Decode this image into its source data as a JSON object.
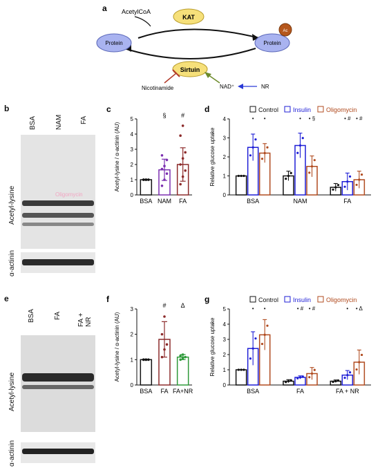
{
  "panel_a": {
    "letter": "a",
    "acetyl_coa": "AcetylCoA",
    "kat": "KAT",
    "protein_left": "Protein",
    "protein_right": "Protein",
    "ac": "Ac",
    "sirtuin": "Sirtuin",
    "nicotinamide": "Nicotinamide",
    "nad": "NAD⁺",
    "nr": "NR"
  },
  "panel_b": {
    "letter": "b",
    "lanes": [
      "BSA",
      "NAM",
      "FA"
    ],
    "blot_label_top": "Acetyl-lysine",
    "blot_label_bottom": "α-actinin",
    "overlay_text": "Oligomycin"
  },
  "panel_e": {
    "letter": "e",
    "lanes": [
      "BSA",
      "FA",
      "FA + NR"
    ],
    "blot_label_top": "Acetyl-lysine",
    "blot_label_bottom": "α-actinin"
  },
  "colors": {
    "control": "#111111",
    "insulin": "#1d1dd6",
    "oligomycin": "#b04a1e",
    "nam": "#7b2fb0",
    "fa": "#8c2a2a",
    "fa_nr": "#2e9a3a",
    "sirtuin_fill": "#f6e07a",
    "protein_fill": "#a9b3f0"
  },
  "chart_data": [
    {
      "panel": "c",
      "type": "bar",
      "ylabel": "Acetyl-lysine / α-actinin (AU)",
      "xlabel": "",
      "categories": [
        "BSA",
        "NAM",
        "FA"
      ],
      "values": [
        1.0,
        1.65,
        2.0
      ],
      "errors": [
        0,
        0.7,
        1.1
      ],
      "annotations": [
        "",
        "§",
        "#"
      ],
      "ylim": [
        0,
        5
      ],
      "yticks": [
        "0",
        "1",
        "2",
        "3",
        "4",
        "5"
      ],
      "points": [
        [
          1,
          1,
          1,
          1,
          1,
          1,
          1,
          1
        ],
        [
          0.6,
          1.0,
          1.4,
          1.7,
          1.9,
          2.3,
          2.6
        ],
        [
          0.7,
          1.2,
          1.6,
          2.0,
          2.4,
          2.8,
          3.9,
          4.55
        ]
      ]
    },
    {
      "panel": "d",
      "type": "bar",
      "ylabel": "Relative glucose uptake",
      "xlabel": "",
      "legend": [
        "Control",
        "Insulin",
        "Oligomycin"
      ],
      "legend_position": "top",
      "categories": [
        "BSA",
        "NAM",
        "FA"
      ],
      "series": [
        {
          "name": "Control",
          "values": [
            1.0,
            1.0,
            0.4
          ],
          "errors": [
            0,
            0.25,
            0.2
          ]
        },
        {
          "name": "Insulin",
          "values": [
            2.5,
            2.6,
            0.7
          ],
          "errors": [
            0.7,
            0.65,
            0.45
          ]
        },
        {
          "name": "Oligomycin",
          "values": [
            2.2,
            1.5,
            0.8
          ],
          "errors": [
            0.5,
            0.55,
            0.45
          ]
        }
      ],
      "annotations": [
        [
          "",
          "•",
          "•"
        ],
        [
          "",
          "•",
          "• §"
        ],
        [
          "",
          "• #",
          "• #"
        ]
      ],
      "ylim": [
        0,
        4
      ],
      "yticks": [
        "0",
        "1",
        "2",
        "3",
        "4"
      ]
    },
    {
      "panel": "f",
      "type": "bar",
      "ylabel": "Acetyl-lysine / α-actinin (AU)",
      "xlabel": "",
      "categories": [
        "BSA",
        "FA",
        "FA+NR"
      ],
      "values": [
        1.0,
        1.8,
        1.1
      ],
      "errors": [
        0,
        0.7,
        0.1
      ],
      "annotations": [
        "",
        "#",
        "Δ"
      ],
      "ylim": [
        0,
        3
      ],
      "yticks": [
        "0",
        "1",
        "2",
        "3"
      ],
      "points": [
        [
          1,
          1,
          1,
          1,
          1
        ],
        [
          1.1,
          1.4,
          1.6,
          2.0,
          2.7
        ],
        [
          1.0,
          1.05,
          1.1,
          1.15,
          1.2
        ]
      ]
    },
    {
      "panel": "g",
      "type": "bar",
      "ylabel": "Relative glucose uptake",
      "xlabel": "",
      "legend": [
        "Control",
        "Insulin",
        "Oligomycin"
      ],
      "legend_position": "top",
      "categories": [
        "BSA",
        "FA",
        "FA + NR"
      ],
      "series": [
        {
          "name": "Control",
          "values": [
            1.0,
            0.25,
            0.25
          ],
          "errors": [
            0,
            0.1,
            0.08
          ]
        },
        {
          "name": "Insulin",
          "values": [
            2.4,
            0.5,
            0.65
          ],
          "errors": [
            1.1,
            0.1,
            0.3
          ]
        },
        {
          "name": "Oligomycin",
          "values": [
            3.3,
            0.75,
            1.5
          ],
          "errors": [
            1.0,
            0.4,
            0.8
          ]
        }
      ],
      "annotations": [
        [
          "",
          "•",
          "•"
        ],
        [
          "",
          "• #",
          "• #"
        ],
        [
          "",
          "•",
          "• Δ"
        ]
      ],
      "ylim": [
        0,
        5
      ],
      "yticks": [
        "0",
        "1",
        "2",
        "3",
        "4",
        "5"
      ]
    }
  ]
}
